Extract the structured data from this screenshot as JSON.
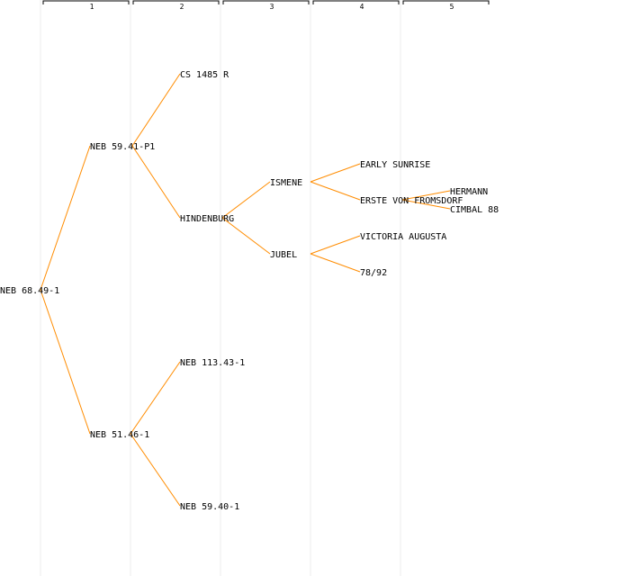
{
  "colors": {
    "edge": "#ff8c00",
    "column_line": "#ececec",
    "text": "#000000"
  },
  "generations": [
    "1",
    "2",
    "3",
    "4",
    "5"
  ],
  "nodes": {
    "root": "NEB 68.49-1",
    "sire": "NEB 59.41-P1",
    "dam": "NEB 51.46-1",
    "sire_sire": "CS 1485 R",
    "sire_dam": "HINDENBURG",
    "dam_sire": "NEB 113.43-1",
    "dam_dam": "NEB 59.40-1",
    "hindenburg_sire": "ISMENE",
    "hindenburg_dam": "JUBEL",
    "ismene_sire": "EARLY SUNRISE",
    "ismene_dam": "ERSTE VON FROMSDORF",
    "jubel_sire": "VICTORIA AUGUSTA",
    "jubel_dam": "78/92",
    "erste_sire": "HERMANN",
    "erste_dam": "CIMBAL 88"
  }
}
